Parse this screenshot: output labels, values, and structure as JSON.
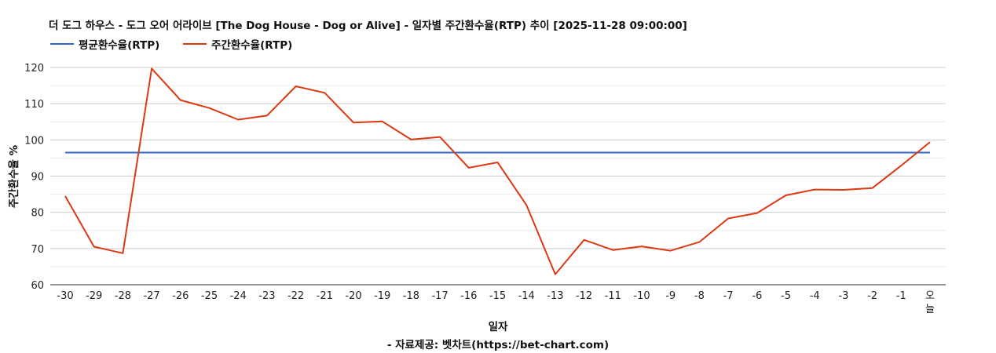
{
  "chart_data": {
    "type": "line",
    "title": "더 도그 하우스 - 도그 오어 어라이브 [The Dog House - Dog or Alive] - 일자별 주간환수율(RTP) 추이 [2025-11-28 09:00:00]",
    "xlabel": "일자",
    "ylabel": "주간환수율 %",
    "ylim": [
      60,
      120
    ],
    "y_ticks": [
      60,
      70,
      80,
      90,
      100,
      110,
      120
    ],
    "grid": true,
    "legend_position": "top-left",
    "categories": [
      "-30",
      "-29",
      "-28",
      "-27",
      "-26",
      "-25",
      "-24",
      "-23",
      "-22",
      "-21",
      "-20",
      "-19",
      "-18",
      "-17",
      "-16",
      "-15",
      "-14",
      "-13",
      "-12",
      "-11",
      "-10",
      "-9",
      "-8",
      "-7",
      "-6",
      "-5",
      "-4",
      "-3",
      "-2",
      "-1",
      "오늘"
    ],
    "series": [
      {
        "name": "평균환수율(RTP)",
        "color": "#3366cc",
        "values": [
          96.5,
          96.5,
          96.5,
          96.5,
          96.5,
          96.5,
          96.5,
          96.5,
          96.5,
          96.5,
          96.5,
          96.5,
          96.5,
          96.5,
          96.5,
          96.5,
          96.5,
          96.5,
          96.5,
          96.5,
          96.5,
          96.5,
          96.5,
          96.5,
          96.5,
          96.5,
          96.5,
          96.5,
          96.5,
          96.5,
          96.5
        ]
      },
      {
        "name": "주간환수율(RTP)",
        "color": "#dc3912",
        "values": [
          84.5,
          70.5,
          68.7,
          119.7,
          111.0,
          108.8,
          105.6,
          106.7,
          114.8,
          113.0,
          104.8,
          105.1,
          100.1,
          100.8,
          92.3,
          93.8,
          82.0,
          62.9,
          72.4,
          69.6,
          70.6,
          69.4,
          71.8,
          78.3,
          79.8,
          84.7,
          86.3,
          86.2,
          86.7,
          92.9,
          99.4
        ]
      }
    ]
  },
  "credit": "- 자료제공: 벳차트(https://bet-chart.com)",
  "colors": {
    "grid": "#cccccc",
    "axis": "#333333"
  }
}
